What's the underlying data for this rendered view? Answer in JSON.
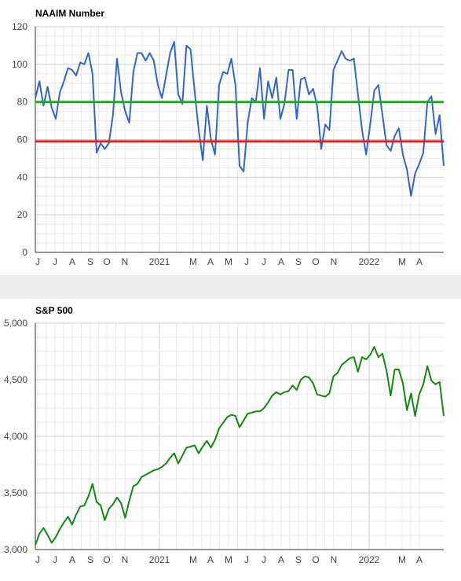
{
  "chart_data": [
    {
      "type": "line",
      "title": "NAAIM Number",
      "xlabel": "",
      "ylabel": "",
      "ylim": [
        0,
        120
      ],
      "yticks": [
        0,
        20,
        40,
        60,
        80,
        100,
        120
      ],
      "xticks": [
        "J",
        "J",
        "A",
        "S",
        "O",
        "N",
        "2021",
        "M",
        "A",
        "M",
        "J",
        "J",
        "A",
        "S",
        "O",
        "N",
        "2022",
        "M",
        "A"
      ],
      "grid": true,
      "legend": "none",
      "series": [
        {
          "color": "#3366cc",
          "values": [
            82,
            91,
            78,
            88,
            77,
            71,
            85,
            91,
            98,
            97,
            94,
            101,
            100,
            106,
            95,
            53,
            58,
            55,
            58,
            73,
            103,
            85,
            75,
            69,
            96,
            106,
            106,
            102,
            106,
            102,
            89,
            82,
            94,
            106,
            112,
            84,
            79,
            110,
            108,
            86,
            65,
            49,
            78,
            60,
            52,
            89,
            96,
            95,
            103,
            89,
            46,
            43,
            69,
            82,
            80,
            98,
            71,
            91,
            82,
            93,
            71,
            79,
            97,
            97,
            71,
            92,
            93,
            84,
            87,
            78,
            55,
            68,
            65,
            97,
            102,
            107,
            103,
            102,
            103,
            84,
            65,
            52,
            68,
            86,
            89,
            73,
            57,
            54,
            62,
            66,
            52,
            44,
            30,
            42,
            47,
            53,
            80,
            83,
            63,
            73,
            46
          ]
        },
        {
          "color": "#22aa22",
          "values": [
            80,
            80
          ]
        },
        {
          "color": "#dd2222",
          "values": [
            59,
            59
          ]
        }
      ]
    },
    {
      "type": "line",
      "title": "S&P 500",
      "xlabel": "",
      "ylabel": "",
      "ylim": [
        3000,
        5000
      ],
      "yticks": [
        "3,000",
        "3,500",
        "4,000",
        "4,500",
        "5,000"
      ],
      "ytick_values": [
        3000,
        3500,
        4000,
        4500,
        5000
      ],
      "xticks": [
        "J",
        "J",
        "A",
        "S",
        "O",
        "N",
        "2021",
        "M",
        "A",
        "M",
        "J",
        "J",
        "A",
        "S",
        "O",
        "N",
        "2022",
        "M",
        "A"
      ],
      "grid": true,
      "legend": "none",
      "series": [
        {
          "color": "#118811",
          "values": [
            3040,
            3140,
            3190,
            3130,
            3060,
            3110,
            3180,
            3240,
            3290,
            3220,
            3310,
            3380,
            3390,
            3470,
            3580,
            3420,
            3390,
            3260,
            3360,
            3400,
            3460,
            3410,
            3280,
            3430,
            3560,
            3580,
            3640,
            3660,
            3680,
            3700,
            3710,
            3730,
            3760,
            3810,
            3850,
            3760,
            3830,
            3900,
            3910,
            3920,
            3850,
            3910,
            3960,
            3900,
            3970,
            4070,
            4120,
            4170,
            4190,
            4180,
            4080,
            4140,
            4200,
            4210,
            4220,
            4220,
            4250,
            4300,
            4360,
            4390,
            4370,
            4390,
            4400,
            4450,
            4410,
            4500,
            4530,
            4520,
            4470,
            4370,
            4360,
            4350,
            4380,
            4530,
            4560,
            4630,
            4660,
            4690,
            4700,
            4570,
            4700,
            4680,
            4720,
            4790,
            4700,
            4730,
            4580,
            4360,
            4590,
            4590,
            4470,
            4230,
            4380,
            4180,
            4370,
            4460,
            4620,
            4490,
            4460,
            4480,
            4180
          ]
        }
      ]
    }
  ]
}
